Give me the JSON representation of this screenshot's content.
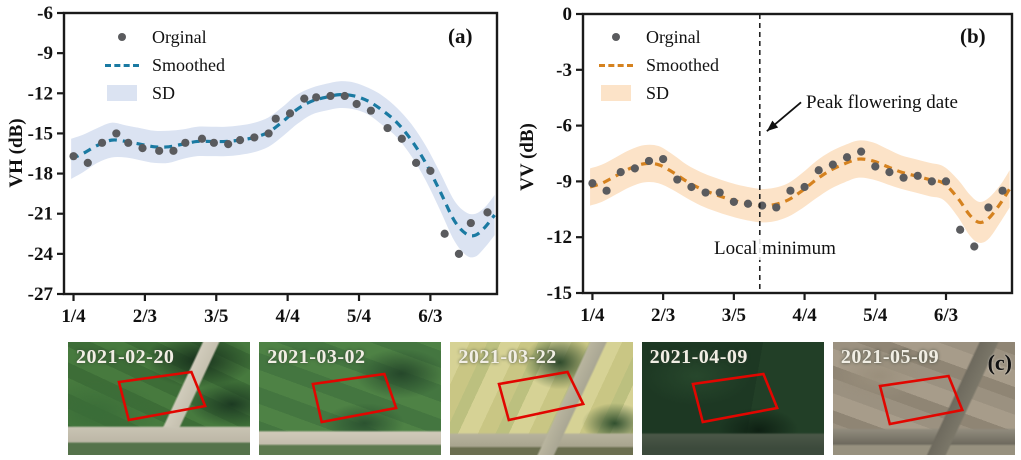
{
  "figure": {
    "panel_c_label": "(c)",
    "legend": {
      "original": "Orginal",
      "smoothed": "Smoothed",
      "sd": "SD"
    }
  },
  "chart_data": [
    {
      "type": "scatter",
      "panel_label": "(a)",
      "ylabel": "VH (dB)",
      "ylim": [
        -27,
        -6
      ],
      "ytick_values": [
        -6,
        -9,
        -12,
        -15,
        -18,
        -21,
        -24,
        -27
      ],
      "ytick_labels": [
        "-6",
        "-9",
        "-12",
        "-15",
        "-18",
        "-21",
        "-24",
        "-27"
      ],
      "xtick_days": [
        4,
        34,
        64,
        94,
        124,
        154
      ],
      "xtick_labels": [
        "1/4",
        "2/3",
        "3/5",
        "4/4",
        "5/4",
        "6/3"
      ],
      "xlim_days": [
        0,
        182
      ],
      "legend": [
        "Orginal",
        "Smoothed",
        "SD"
      ],
      "grid": false,
      "colors": {
        "point": "#5a5b5e",
        "line": "#1a7aa2",
        "band": "#dbe3f2",
        "frame": "#1a1a1a"
      },
      "original": {
        "days": [
          4,
          10,
          16,
          22,
          27,
          33,
          40,
          46,
          51,
          58,
          63,
          69,
          74,
          80,
          86,
          89,
          95,
          101,
          106,
          112,
          118,
          123,
          129,
          136,
          142,
          148,
          154,
          160,
          166,
          171,
          178
        ],
        "values": [
          -16.7,
          -17.2,
          -15.7,
          -15.0,
          -15.7,
          -16.1,
          -16.3,
          -16.3,
          -15.7,
          -15.4,
          -15.7,
          -15.8,
          -15.5,
          -15.3,
          -15.0,
          -13.9,
          -13.5,
          -12.4,
          -12.3,
          -12.2,
          -12.2,
          -12.8,
          -13.3,
          -14.6,
          -15.4,
          -17.2,
          -17.8,
          -22.5,
          -24.0,
          -21.7,
          -20.9
        ]
      },
      "smoothed": {
        "days": [
          3,
          8,
          14,
          20,
          26,
          32,
          38,
          44,
          50,
          56,
          62,
          68,
          74,
          80,
          86,
          92,
          98,
          104,
          110,
          116,
          122,
          128,
          134,
          140,
          146,
          152,
          158,
          164,
          169,
          173,
          177,
          181
        ],
        "values": [
          -16.9,
          -16.5,
          -15.9,
          -15.5,
          -15.6,
          -15.8,
          -16.0,
          -16.0,
          -15.8,
          -15.6,
          -15.6,
          -15.6,
          -15.5,
          -15.3,
          -14.9,
          -14.1,
          -13.2,
          -12.6,
          -12.3,
          -12.1,
          -12.2,
          -12.6,
          -13.3,
          -14.2,
          -15.5,
          -17.2,
          -19.3,
          -21.5,
          -22.5,
          -22.6,
          -22.0,
          -21.1
        ]
      },
      "sd_half_width": [
        1.5,
        1.4,
        1.3,
        1.3,
        1.2,
        1.2,
        1.2,
        1.2,
        1.1,
        1.1,
        1.1,
        1.1,
        1.1,
        1.1,
        1.1,
        1.1,
        1.1,
        1.0,
        1.0,
        1.0,
        1.0,
        1.0,
        1.1,
        1.1,
        1.2,
        1.3,
        1.4,
        1.5,
        1.6,
        1.6,
        1.5,
        1.5
      ]
    },
    {
      "type": "scatter",
      "panel_label": "(b)",
      "ylabel": "VV (dB)",
      "ylim": [
        -15,
        0
      ],
      "ytick_values": [
        0,
        -3,
        -6,
        -9,
        -12,
        -15
      ],
      "ytick_labels": [
        "0",
        "-3",
        "-6",
        "-9",
        "-12",
        "-15"
      ],
      "xtick_days": [
        4,
        34,
        64,
        94,
        124,
        154
      ],
      "xtick_labels": [
        "1/4",
        "2/3",
        "3/5",
        "4/4",
        "5/4",
        "6/3"
      ],
      "xlim_days": [
        0,
        182
      ],
      "legend": [
        "Orginal",
        "Smoothed",
        "SD"
      ],
      "grid": false,
      "colors": {
        "point": "#5a5b5e",
        "line": "#d5821f",
        "band": "#fce3c8",
        "frame": "#1a1a1a"
      },
      "original": {
        "days": [
          4,
          10,
          16,
          22,
          28,
          34,
          40,
          46,
          52,
          58,
          64,
          70,
          76,
          82,
          88,
          94,
          100,
          106,
          112,
          118,
          124,
          130,
          136,
          142,
          148,
          154,
          160,
          166,
          172,
          178
        ],
        "values": [
          -9.1,
          -9.5,
          -8.5,
          -8.3,
          -7.9,
          -7.8,
          -8.9,
          -9.3,
          -9.6,
          -9.6,
          -10.1,
          -10.2,
          -10.3,
          -10.4,
          -9.5,
          -9.3,
          -8.4,
          -8.1,
          -7.7,
          -7.4,
          -8.2,
          -8.5,
          -8.8,
          -8.7,
          -9.0,
          -9.0,
          -11.6,
          -12.5,
          -10.4,
          -9.5
        ]
      },
      "smoothed": {
        "days": [
          3,
          8,
          14,
          20,
          26,
          32,
          38,
          44,
          50,
          56,
          62,
          68,
          75,
          81,
          87,
          93,
          99,
          105,
          111,
          117,
          123,
          129,
          135,
          141,
          147,
          153,
          159,
          164,
          168,
          172,
          177,
          181
        ],
        "values": [
          -9.3,
          -9.1,
          -8.7,
          -8.3,
          -8.05,
          -8.1,
          -8.5,
          -9.0,
          -9.4,
          -9.7,
          -9.95,
          -10.15,
          -10.3,
          -10.25,
          -10.0,
          -9.5,
          -8.9,
          -8.4,
          -8.05,
          -7.8,
          -7.9,
          -8.2,
          -8.5,
          -8.7,
          -8.9,
          -9.1,
          -9.9,
          -10.8,
          -11.2,
          -11.0,
          -10.2,
          -9.4
        ]
      },
      "sd_half_width": [
        1.0,
        1.0,
        1.0,
        1.0,
        1.0,
        1.0,
        0.95,
        0.9,
        0.9,
        0.9,
        0.9,
        0.9,
        0.9,
        0.9,
        0.9,
        0.95,
        1.0,
        1.0,
        1.0,
        1.0,
        1.0,
        0.95,
        0.9,
        0.9,
        0.9,
        0.9,
        1.0,
        1.1,
        1.1,
        1.1,
        1.0,
        1.0
      ],
      "annotations": {
        "vline_day": 75,
        "arrow_from_day": 92.5,
        "arrow_from_val": -4.75,
        "arrow_to_day": 78,
        "arrow_to_val": -6.3,
        "peak_label": "Peak flowering date",
        "local_min_label": "Local minimum"
      }
    }
  ],
  "thumbnails": {
    "outline_color": "#e10600",
    "items": [
      {
        "date": "2021-02-20",
        "appearance": "green fields, diagonal road"
      },
      {
        "date": "2021-03-02",
        "appearance": "green fields"
      },
      {
        "date": "2021-03-22",
        "appearance": "yellow flowering fields"
      },
      {
        "date": "2021-04-09",
        "appearance": "dark green fields"
      },
      {
        "date": "2021-05-09",
        "appearance": "tan harvested fields"
      }
    ]
  }
}
